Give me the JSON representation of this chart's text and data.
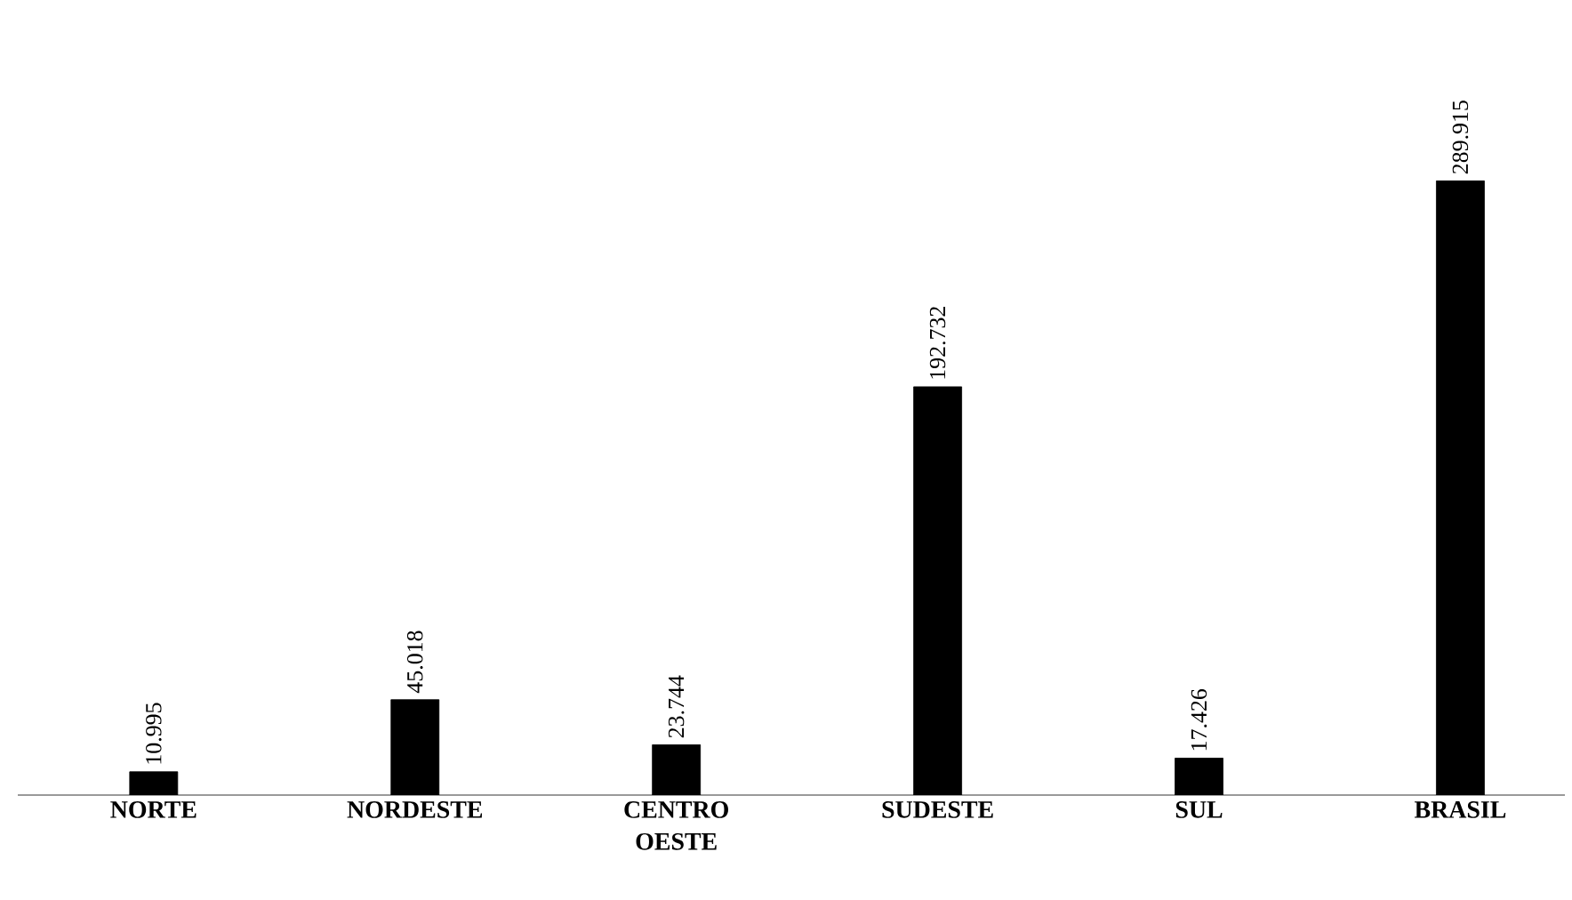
{
  "chart_data": {
    "type": "bar",
    "categories": [
      "NORTE",
      "NORDESTE",
      "CENTRO OESTE",
      "SUDESTE",
      "SUL",
      "BRASIL"
    ],
    "values": [
      10995,
      45018,
      23744,
      192732,
      17426,
      289915
    ],
    "value_labels": [
      "10.995",
      "45.018",
      "23.744",
      "192.732",
      "17.426",
      "289.915"
    ],
    "color": "#000000"
  }
}
